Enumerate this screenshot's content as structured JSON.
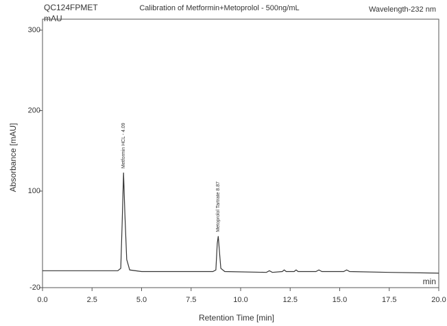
{
  "chart_data": {
    "type": "line",
    "id": "QC124FPMET",
    "title": "Calibration of Metformin+Metoprolol - 500ng/mL",
    "wavelength": "Wavelength-232 nm",
    "y_unit": "mAU",
    "x_unit": "min",
    "y_label": "Absorbance [mAU]",
    "x_label": "Retention Time [min]",
    "xlim": [
      0,
      20
    ],
    "ylim": [
      -20,
      300
    ],
    "xticks": [
      {
        "value": 0,
        "label": "0.0"
      },
      {
        "value": 2.5,
        "label": "2.5"
      },
      {
        "value": 5,
        "label": "5.0"
      },
      {
        "value": 7.5,
        "label": "7.5"
      },
      {
        "value": 10,
        "label": "10.0"
      },
      {
        "value": 12.5,
        "label": "12.5"
      },
      {
        "value": 15,
        "label": "15.0"
      },
      {
        "value": 17.5,
        "label": "17.5"
      },
      {
        "value": 20,
        "label": "20.0"
      }
    ],
    "yticks": [
      -20,
      100,
      200,
      300
    ],
    "series": [
      {
        "color": "#333333",
        "x": [
          0,
          3.8,
          3.95,
          4.02,
          4.09,
          4.16,
          4.25,
          4.4,
          5.0,
          8.6,
          8.75,
          8.82,
          8.87,
          8.93,
          9.0,
          9.2,
          11.3,
          11.45,
          11.6,
          12.1,
          12.2,
          12.3,
          12.7,
          12.8,
          12.9,
          13.8,
          13.95,
          14.1,
          15.2,
          15.35,
          15.5,
          17.5,
          20
        ],
        "values": [
          1,
          1,
          4,
          60,
          123,
          70,
          15,
          2,
          0,
          0,
          2,
          35,
          44,
          25,
          4,
          0,
          -1,
          1,
          -1,
          0,
          2,
          0,
          0,
          2,
          0,
          0,
          2,
          0,
          0,
          2,
          0,
          -1,
          -2
        ]
      }
    ],
    "annotations": [
      {
        "text": "Metformin HCL - 4.09",
        "x": 4.09
      },
      {
        "text": "Metoprolol Tartrate 8.87",
        "x": 8.87
      }
    ]
  }
}
